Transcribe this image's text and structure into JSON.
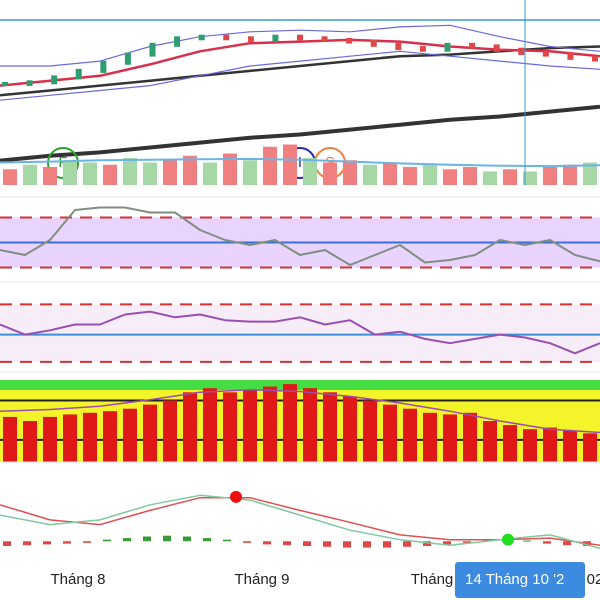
{
  "x_axis": {
    "xlim": [
      0,
      12
    ],
    "xticks": [
      {
        "value": 1.56,
        "label": "Tháng 8"
      },
      {
        "value": 5.24,
        "label": "Tháng 9"
      },
      {
        "value": 8.64,
        "label": "Tháng"
      },
      {
        "value": 11.9,
        "label": "02"
      }
    ],
    "crosshair": {
      "value": 10.5,
      "label": "14 Tháng 10 '2"
    }
  },
  "chart_data": [
    {
      "type": "price",
      "ylim": [
        0,
        100
      ],
      "series": [
        {
          "kind": "line",
          "color": "#333333",
          "width": 4,
          "values": [
            15,
            18,
            20,
            23,
            26,
            29,
            31,
            34,
            37,
            40,
            42,
            45,
            48
          ]
        },
        {
          "kind": "line",
          "color": "#333333",
          "width": 2.5,
          "values": [
            55,
            58,
            61,
            64,
            67,
            70,
            73,
            76,
            79,
            80,
            82,
            84,
            85
          ]
        },
        {
          "kind": "line",
          "color": "#6a6ae0",
          "width": 1.2,
          "values": [
            73,
            73,
            76,
            85,
            91,
            94,
            95,
            94,
            97,
            98,
            91,
            85,
            82
          ]
        },
        {
          "kind": "line",
          "color": "#6a6ae0",
          "width": 1.2,
          "values": [
            52,
            55,
            58,
            61,
            67,
            73,
            76,
            79,
            82,
            79,
            76,
            73,
            71
          ]
        },
        {
          "kind": "line",
          "color": "#d6304a",
          "width": 2.5,
          "values": [
            61,
            64,
            67,
            74,
            82,
            87,
            88,
            89,
            88,
            85,
            83,
            82,
            79
          ]
        },
        {
          "kind": "candle",
          "color": "#2e9e6e",
          "down_color": "#e04848",
          "values": [
            62,
            63,
            66,
            70,
            75,
            80,
            86,
            90,
            91,
            90,
            89,
            91,
            90,
            89,
            88,
            86,
            84,
            83,
            86,
            85,
            83,
            81,
            80,
            78,
            77
          ]
        }
      ],
      "events": [
        {
          "x": 1.26,
          "label": "F",
          "color": "#2aa52a"
        },
        {
          "x": 6.0,
          "label": "I",
          "color": "#2a2ab0"
        },
        {
          "x": 6.6,
          "label": "S",
          "color": "#f08040"
        }
      ]
    },
    {
      "type": "volume",
      "ylim": [
        0,
        100
      ],
      "series": [
        {
          "kind": "bar",
          "colors": [
            "#f08080",
            "#a6d8a6",
            "#f08080",
            "#a6d8a6",
            "#a6d8a6",
            "#f08080",
            "#a6d8a6",
            "#a6d8a6",
            "#f08080",
            "#f08080",
            "#a6d8a6",
            "#f08080",
            "#a6d8a6",
            "#f08080",
            "#f08080",
            "#a6d8a6",
            "#f08080",
            "#f08080",
            "#a6d8a6",
            "#f08080",
            "#f08080",
            "#a6d8a6",
            "#f08080",
            "#f08080",
            "#a6d8a6",
            "#f08080",
            "#a6d8a6",
            "#f08080",
            "#f08080",
            "#a6d8a6"
          ],
          "values": [
            35,
            45,
            40,
            55,
            50,
            45,
            60,
            50,
            55,
            65,
            50,
            70,
            55,
            85,
            90,
            60,
            50,
            55,
            45,
            50,
            40,
            45,
            35,
            40,
            30,
            35,
            30,
            40,
            45,
            50
          ]
        },
        {
          "kind": "line",
          "color": "#6ab4e6",
          "width": 2,
          "values": [
            50,
            52,
            55,
            56,
            57,
            58,
            56,
            52,
            48,
            45,
            43,
            42,
            44
          ]
        }
      ]
    },
    {
      "type": "oscillator",
      "ylim": [
        24,
        80
      ],
      "band": [
        30,
        70
      ],
      "band_color": "#e2c9ff",
      "levels": [
        {
          "value": 70,
          "color": "#d33333",
          "dash": true
        },
        {
          "value": 50,
          "color": "#3a6fd8",
          "dash": false
        },
        {
          "value": 30,
          "color": "#d33333",
          "dash": true
        }
      ],
      "series": [
        {
          "kind": "line",
          "color": "#7f8f7f",
          "width": 2,
          "values": [
            44,
            40,
            52,
            76,
            78,
            78,
            74,
            74,
            60,
            52,
            48,
            52,
            40,
            44,
            32,
            40,
            48,
            34,
            36,
            40,
            52,
            48,
            52,
            40,
            35
          ]
        }
      ]
    },
    {
      "type": "oscillator",
      "ylim": [
        23,
        80
      ],
      "band": [
        30,
        70
      ],
      "band_color": "#f5e8f6",
      "levels": [
        {
          "value": 70,
          "color": "#d33333",
          "dash": true
        },
        {
          "value": 49,
          "color": "#3a8fd8",
          "dash": false
        },
        {
          "value": 30,
          "color": "#d33333",
          "dash": true
        }
      ],
      "series": [
        {
          "kind": "line",
          "color": "#9a4fb0",
          "width": 2,
          "values": [
            56,
            49,
            52,
            56,
            56,
            63,
            65,
            61,
            63,
            59,
            58,
            58,
            61,
            56,
            59,
            49,
            51,
            46,
            43,
            46,
            49,
            47,
            43,
            36,
            43
          ]
        }
      ]
    },
    {
      "type": "histogram",
      "ylim": [
        0,
        100
      ],
      "background": "#f4f42a",
      "top_color": "#44dd44",
      "levels": [
        {
          "value": 75,
          "color": "#222222",
          "dash": false
        },
        {
          "value": 27,
          "color": "#222222",
          "dash": false
        }
      ],
      "series": [
        {
          "kind": "bar",
          "color": "#e01818",
          "values": [
            55,
            50,
            55,
            58,
            60,
            62,
            65,
            70,
            75,
            85,
            90,
            85,
            88,
            92,
            95,
            90,
            85,
            80,
            75,
            70,
            65,
            60,
            58,
            60,
            50,
            45,
            40,
            42,
            38,
            35
          ]
        },
        {
          "kind": "line",
          "color": "#9a4fb0",
          "width": 1.5,
          "values": [
            62,
            64,
            68,
            76,
            85,
            88,
            86,
            80,
            72,
            62,
            50,
            40,
            36
          ]
        }
      ]
    },
    {
      "type": "macd",
      "ylim": [
        -3,
        9
      ],
      "series": [
        {
          "kind": "hist",
          "color": "#e04848",
          "up_color": "#3a9a3a",
          "values": [
            -0.6,
            -0.5,
            -0.4,
            -0.3,
            -0.2,
            0.2,
            0.4,
            0.6,
            0.7,
            0.6,
            0.4,
            0.2,
            -0.2,
            -0.4,
            -0.5,
            -0.6,
            -0.7,
            -0.8,
            -0.8,
            -0.8,
            -0.7,
            -0.6,
            -0.4,
            -0.2,
            0.1,
            0.2,
            0.1,
            -0.3,
            -0.5,
            -0.6
          ]
        },
        {
          "kind": "line",
          "color": "#e05050",
          "width": 1.5,
          "values": [
            4.6,
            2.7,
            2.1,
            3.9,
            5.5,
            5.5,
            3.9,
            2.4,
            0.8,
            0.2,
            0.2,
            0.4,
            -0.5
          ]
        },
        {
          "kind": "line",
          "color": "#7fc9a0",
          "width": 1.5,
          "values": [
            3.3,
            2.1,
            2.7,
            4.6,
            5.8,
            5.2,
            3.3,
            1.4,
            0.2,
            -0.5,
            0.2,
            0.8,
            -0.9
          ]
        }
      ],
      "markers": [
        {
          "x": 4.72,
          "y": 5.6,
          "color": "#ee1111"
        },
        {
          "x": 10.16,
          "y": 0.2,
          "color": "#22dd22"
        }
      ]
    }
  ]
}
